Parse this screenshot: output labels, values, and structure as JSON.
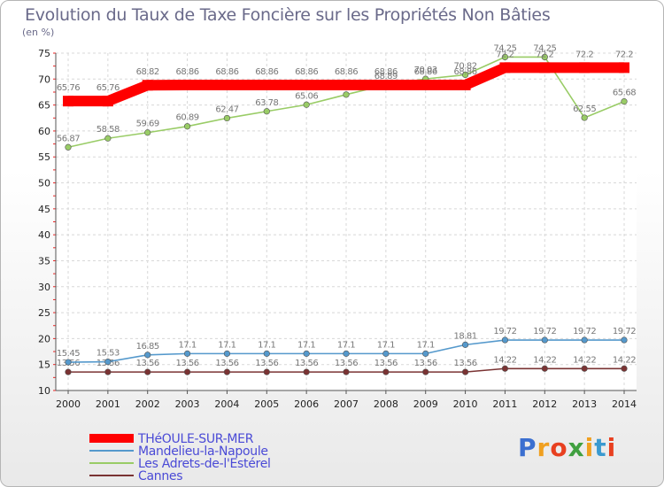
{
  "brand": "Proxiti",
  "brand_colors": [
    "#3b6fd0",
    "#f0a020",
    "#e84020",
    "#40a040",
    "#f0a020",
    "#3b9ad0",
    "#e84020"
  ],
  "chart_data": {
    "type": "line",
    "title": "Evolution du Taux de Taxe Foncière sur les Propriétés Non Bâties",
    "ylabel": "(en %)",
    "xlabel": "",
    "ylim": [
      10,
      75
    ],
    "yticks": [
      10,
      15,
      20,
      25,
      30,
      35,
      40,
      45,
      50,
      55,
      60,
      65,
      70,
      75
    ],
    "grid": true,
    "legend_position": "bottom-left",
    "x": [
      "2000",
      "2001",
      "2002",
      "2003",
      "2004",
      "2005",
      "2006",
      "2007",
      "2008",
      "2009",
      "2010",
      "2011",
      "2012",
      "2013",
      "2014"
    ],
    "series": [
      {
        "name": "THéOULE-SUR-MER",
        "color": "#ff0000",
        "values": [
          65.76,
          65.76,
          68.82,
          68.86,
          68.86,
          68.86,
          68.86,
          68.86,
          68.86,
          68.86,
          68.86,
          72.2,
          72.2,
          72.2,
          72.2
        ],
        "labels": [
          "65.76",
          "65.76",
          "68.82",
          "68.86",
          "68.86",
          "68.86",
          "68.86",
          "68.86",
          "68.86",
          "68.86",
          "68.86",
          "72.2",
          "72.2",
          "72.2",
          "72.2"
        ]
      },
      {
        "name": "Mandelieu-la-Napoule",
        "color": "#5599cc",
        "values": [
          15.45,
          15.53,
          16.85,
          17.1,
          17.1,
          17.1,
          17.1,
          17.1,
          17.1,
          17.1,
          18.81,
          19.72,
          19.72,
          19.72,
          19.72
        ],
        "labels": [
          "15.45",
          "15.53",
          "16.85",
          "17.1",
          "17.1",
          "17.1",
          "17.1",
          "17.1",
          "17.1",
          "17.1",
          "18.81",
          "19.72",
          "19.72",
          "19.72",
          "19.72"
        ]
      },
      {
        "name": "Les Adrets-de-l'Estérel",
        "color": "#99cc66",
        "values": [
          56.87,
          58.58,
          59.69,
          60.89,
          62.47,
          63.78,
          65.06,
          67.01,
          68.89,
          70.03,
          70.82,
          74.25,
          74.25,
          62.55,
          65.68
        ],
        "labels": [
          "56.87",
          "58.58",
          "59.69",
          "60.89",
          "62.47",
          "63.78",
          "65.06",
          "67.01",
          "68.89",
          "70.03",
          "70.82",
          "74.25",
          "74.25",
          "62.55",
          "65.68"
        ]
      },
      {
        "name": "Cannes",
        "color": "#7a3333",
        "values": [
          13.56,
          13.56,
          13.56,
          13.56,
          13.56,
          13.56,
          13.56,
          13.56,
          13.56,
          13.56,
          13.56,
          14.22,
          14.22,
          14.22,
          14.22
        ],
        "labels": [
          "13.56",
          "13.56",
          "13.56",
          "13.56",
          "13.56",
          "13.56",
          "13.56",
          "13.56",
          "13.56",
          "13.56",
          "13.56",
          "14.22",
          "14.22",
          "14.22",
          "14.22"
        ]
      }
    ]
  }
}
